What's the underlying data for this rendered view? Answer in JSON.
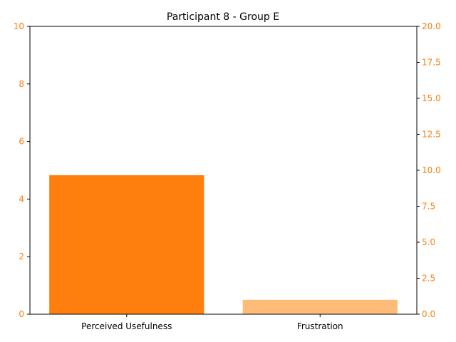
{
  "chart_data": {
    "type": "bar",
    "title": "Participant 8 - Group E",
    "categories": [
      "Perceived Usefulness",
      "Frustration"
    ],
    "bars": [
      {
        "category": "Perceived Usefulness",
        "value": 4.83,
        "axis": "left",
        "color": "#ff7f0e"
      },
      {
        "category": "Frustration",
        "value": 1.0,
        "axis": "right",
        "color": "#ffbb78"
      }
    ],
    "left_axis": {
      "ylim": [
        0,
        10
      ],
      "ticks": [
        "0",
        "2",
        "4",
        "6",
        "8",
        "10"
      ],
      "tick_color": "#ff7f0e",
      "label": ""
    },
    "right_axis": {
      "ylim": [
        0,
        20
      ],
      "ticks": [
        "0.0",
        "2.5",
        "5.0",
        "7.5",
        "10.0",
        "12.5",
        "15.0",
        "17.5",
        "20.0"
      ],
      "tick_color": "#ff7f0e",
      "label": ""
    },
    "xlabel": "",
    "grid": false,
    "legend": "none"
  }
}
